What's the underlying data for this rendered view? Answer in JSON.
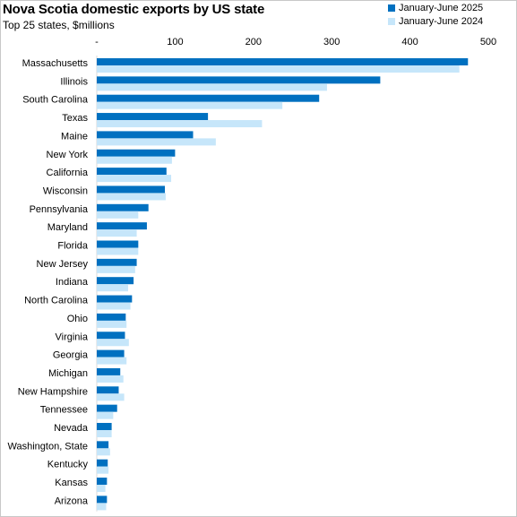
{
  "chart_data": {
    "type": "bar",
    "orientation": "horizontal",
    "title": "Nova Scotia domestic exports by US state",
    "subtitle": "Top 25 states, $millions",
    "xlim": [
      0,
      500
    ],
    "x_ticks": [
      "-",
      "100",
      "200",
      "300",
      "400",
      "500"
    ],
    "legend_position": "top-right",
    "grid": false,
    "categories": [
      "Massachusetts",
      "Illinois",
      "South Carolina",
      "Texas",
      "Maine",
      "New York",
      "California",
      "Wisconsin",
      "Pennsylvania",
      "Maryland",
      "Florida",
      "New Jersey",
      "Indiana",
      "North Carolina",
      "Ohio",
      "Virginia",
      "Georgia",
      "Michigan",
      "New Hampshire",
      "Tennessee",
      "Nevada",
      "Washington, State",
      "Kentucky",
      "Kansas",
      "Arizona"
    ],
    "series": [
      {
        "name": "January-June 2025",
        "color": "#0070c0",
        "values": [
          474,
          362,
          284,
          142,
          123,
          100,
          89,
          87,
          66,
          64,
          53,
          51,
          47,
          45,
          37,
          36,
          35,
          30,
          28,
          26,
          19,
          15,
          14,
          13,
          13
        ]
      },
      {
        "name": "January-June 2024",
        "color": "#c6e6fa",
        "values": [
          463,
          294,
          237,
          211,
          152,
          96,
          95,
          88,
          53,
          51,
          53,
          49,
          40,
          43,
          38,
          41,
          38,
          34,
          35,
          21,
          19,
          17,
          15,
          11,
          12
        ]
      }
    ]
  }
}
